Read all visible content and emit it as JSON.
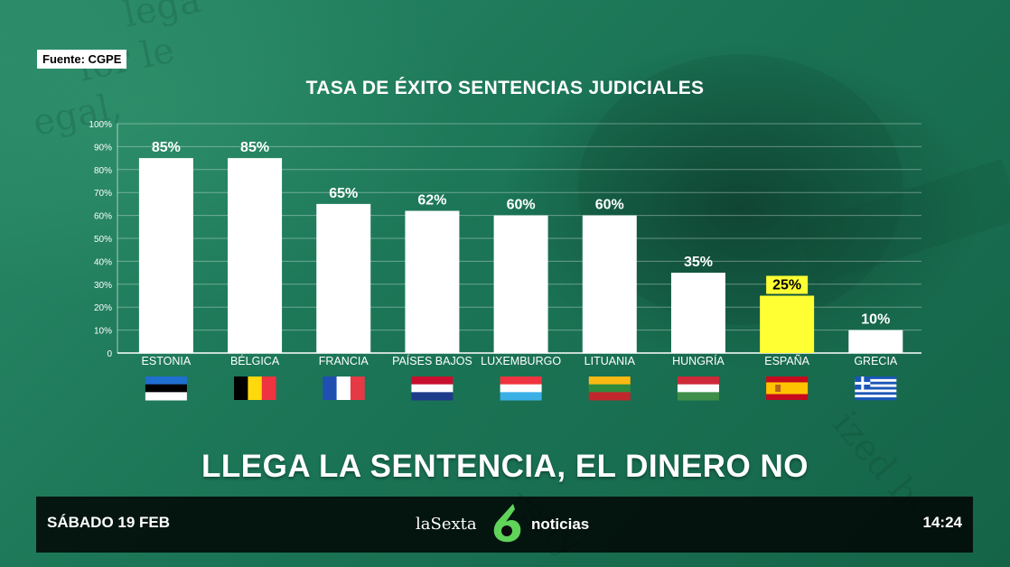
{
  "source": "Fuente: CGPE",
  "headline": "LLEGA LA SENTENCIA, EL DINERO NO",
  "footer": {
    "date": "SÁBADO 19 FEB",
    "time": "14:24",
    "brand": "laSexta",
    "section": "noticias"
  },
  "colors": {
    "bar": "#ffffff",
    "highlight": "#ffff33",
    "background": "#1f7a5c"
  },
  "chart_data": {
    "type": "bar",
    "title": "TASA DE ÉXITO SENTENCIAS JUDICIALES",
    "categories": [
      "ESTONIA",
      "BÉLGICA",
      "FRANCIA",
      "PAÍSES BAJOS",
      "LUXEMBURGO",
      "LITUANIA",
      "HUNGRÍA",
      "ESPAÑA",
      "GRECIA"
    ],
    "values": [
      85,
      85,
      65,
      62,
      60,
      60,
      35,
      25,
      10
    ],
    "labels": [
      "85%",
      "85%",
      "65%",
      "62%",
      "60%",
      "60%",
      "35%",
      "25%",
      "10%"
    ],
    "y_ticks": [
      "0",
      "10%",
      "20%",
      "30%",
      "40%",
      "50%",
      "60%",
      "70%",
      "80%",
      "90%",
      "100%"
    ],
    "ylim": [
      0,
      100
    ],
    "highlight": "ESPAÑA",
    "flags": [
      "estonia-flag",
      "belgium-flag",
      "france-flag",
      "netherlands-flag",
      "luxembourg-flag",
      "lithuania-flag",
      "hungary-flag",
      "spain-flag",
      "greece-flag"
    ],
    "grid": true
  }
}
